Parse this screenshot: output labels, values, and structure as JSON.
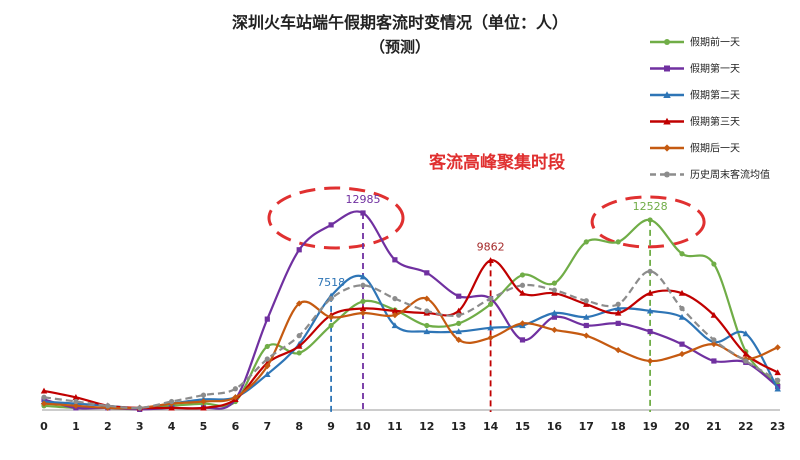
{
  "chart_data": {
    "type": "line",
    "title": "深圳火车站端午假期客流时变情况（单位：人）",
    "subtitle": "（预测）",
    "annotation": "客流高峰聚集时段",
    "x": [
      0,
      1,
      2,
      3,
      4,
      5,
      6,
      7,
      8,
      9,
      10,
      11,
      12,
      13,
      14,
      15,
      16,
      17,
      18,
      19,
      20,
      21,
      22,
      23
    ],
    "ylim": [
      0,
      14500
    ],
    "grid": false,
    "legend_position": "top-right",
    "series": [
      {
        "name": "假期前一天",
        "color": "#70ad47",
        "marker": "circle",
        "dashed": false,
        "values": [
          280,
          140,
          140,
          40,
          280,
          420,
          560,
          4190,
          3760,
          5570,
          7160,
          6590,
          5570,
          5710,
          6970,
          8900,
          8360,
          11080,
          11080,
          12528,
          10300,
          9620,
          3850,
          1680
        ]
      },
      {
        "name": "假期第一天",
        "color": "#7030a0",
        "marker": "square",
        "dashed": false,
        "values": [
          700,
          140,
          140,
          40,
          140,
          140,
          700,
          5990,
          10560,
          12200,
          12985,
          9900,
          9040,
          7500,
          7340,
          4620,
          6120,
          5570,
          5710,
          5170,
          4340,
          3230,
          3140,
          1540
        ]
      },
      {
        "name": "假期第二天",
        "color": "#2e75b6",
        "marker": "triangle",
        "dashed": false,
        "values": [
          550,
          420,
          280,
          140,
          420,
          700,
          840,
          2350,
          4340,
          7518,
          8780,
          5570,
          5170,
          5170,
          5420,
          5570,
          6390,
          6120,
          6690,
          6530,
          6120,
          4480,
          5030,
          1390
        ]
      },
      {
        "name": "假期第三天",
        "color": "#c00000",
        "marker": "triangle",
        "dashed": false,
        "values": [
          1260,
          840,
          280,
          140,
          140,
          140,
          700,
          3090,
          4210,
          6250,
          6690,
          6530,
          6390,
          6530,
          9862,
          7700,
          7700,
          6970,
          6390,
          7700,
          7700,
          6250,
          3690,
          2470
        ]
      },
      {
        "name": "假期后一天",
        "color": "#c55a11",
        "marker": "diamond",
        "dashed": false,
        "values": [
          420,
          280,
          140,
          140,
          420,
          560,
          840,
          2890,
          7020,
          6120,
          6390,
          6250,
          7340,
          4620,
          4760,
          5710,
          5280,
          4900,
          3950,
          3230,
          3690,
          4340,
          3360,
          4130
        ]
      },
      {
        "name": "历史周末客流均值",
        "color": "#8c8c8c",
        "marker": "circle",
        "dashed": true,
        "values": [
          840,
          560,
          280,
          140,
          560,
          980,
          1400,
          3360,
          4900,
          7340,
          8220,
          7340,
          6530,
          6250,
          7340,
          8220,
          7900,
          7200,
          6970,
          9140,
          6690,
          4620,
          3230,
          1960
        ]
      }
    ],
    "peak_labels": [
      {
        "value": 12985,
        "x": 10,
        "series": "假期第一天",
        "color": "#7030a0"
      },
      {
        "value": 12528,
        "x": 19,
        "series": "假期前一天",
        "color": "#70ad47"
      },
      {
        "value": 9862,
        "x": 14,
        "series": "假期第三天",
        "color": "#a52a2a"
      },
      {
        "value": 7518,
        "x": 9,
        "series": "假期第二天",
        "color": "#2e75b6"
      }
    ],
    "annotation_color": "#e03030"
  }
}
